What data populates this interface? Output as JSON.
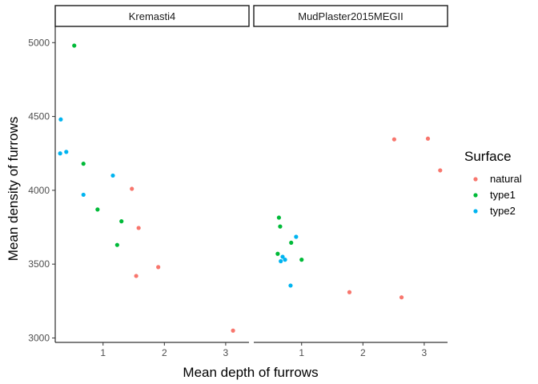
{
  "chart_data": {
    "type": "scatter",
    "xlabel": "Mean depth of furrows",
    "ylabel": "Mean density of furrows",
    "xlim": [
      0.22,
      3.38
    ],
    "ylim": [
      2970,
      5110
    ],
    "xticks": [
      1,
      2,
      3
    ],
    "yticks": [
      3000,
      3500,
      4000,
      4500,
      5000
    ],
    "grid": false,
    "legend": {
      "title": "Surface",
      "position": "right",
      "entries": [
        "natural",
        "type1",
        "type2"
      ]
    },
    "colors": {
      "natural": "#F8766D",
      "type1": "#00BA38",
      "type2": "#00B4F0"
    },
    "panels": [
      {
        "label": "Kremasti4",
        "series": [
          {
            "name": "natural",
            "points": [
              [
                1.47,
                4010
              ],
              [
                1.58,
                3745
              ],
              [
                1.9,
                3480
              ],
              [
                1.54,
                3420
              ],
              [
                3.12,
                3050
              ]
            ]
          },
          {
            "name": "type1",
            "points": [
              [
                0.53,
                4980
              ],
              [
                0.68,
                4180
              ],
              [
                0.91,
                3870
              ],
              [
                1.3,
                3790
              ],
              [
                1.23,
                3630
              ]
            ]
          },
          {
            "name": "type2",
            "points": [
              [
                0.31,
                4480
              ],
              [
                0.3,
                4250
              ],
              [
                0.4,
                4260
              ],
              [
                0.68,
                3970
              ],
              [
                1.16,
                4100
              ]
            ]
          }
        ]
      },
      {
        "label": "MudPlaster2015MEGII",
        "series": [
          {
            "name": "natural",
            "points": [
              [
                2.51,
                4345
              ],
              [
                3.06,
                4350
              ],
              [
                3.26,
                4135
              ],
              [
                1.78,
                3310
              ],
              [
                2.63,
                3275
              ]
            ]
          },
          {
            "name": "type1",
            "points": [
              [
                0.63,
                3815
              ],
              [
                0.65,
                3755
              ],
              [
                0.83,
                3645
              ],
              [
                0.61,
                3570
              ],
              [
                1.0,
                3530
              ]
            ]
          },
          {
            "name": "type2",
            "points": [
              [
                0.91,
                3685
              ],
              [
                0.69,
                3550
              ],
              [
                0.73,
                3530
              ],
              [
                0.66,
                3520
              ],
              [
                0.82,
                3355
              ]
            ]
          }
        ]
      }
    ]
  }
}
